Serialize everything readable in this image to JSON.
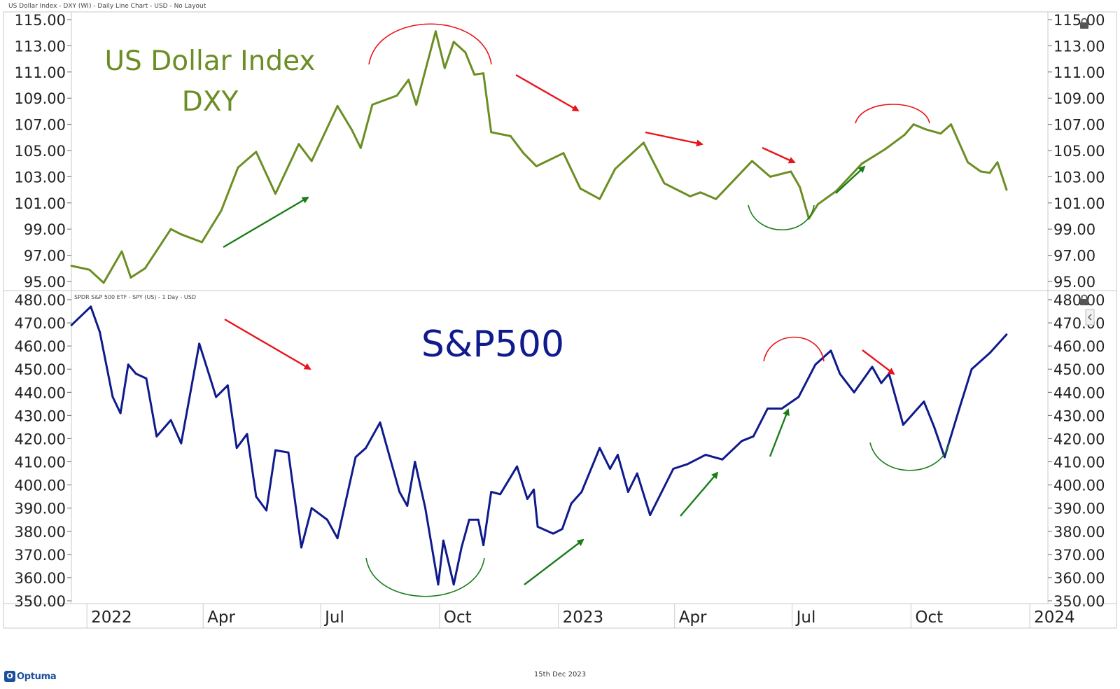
{
  "header": {
    "top_panel_title": "US Dollar Index - DXY (WI) - Daily Line Chart - USD - No Layout",
    "bottom_panel_title": "SPDR S&P 500 ETF - SPY (US) - 1 Day - USD"
  },
  "footer": {
    "date": "15th Dec 2023",
    "brand": "Optuma"
  },
  "colors": {
    "dxy": "#6b8e23",
    "spx": "#0f1a8c",
    "annotation_red": "#e8141b",
    "annotation_green": "#1a7d1a"
  },
  "chart_data": [
    {
      "type": "line",
      "title": "US Dollar Index\nDXY",
      "title_lines": [
        "US Dollar Index",
        "DXY"
      ],
      "ylim": [
        95,
        115
      ],
      "ytick_labels": [
        "95.00",
        "97.00",
        "99.00",
        "101.00",
        "103.00",
        "105.00",
        "107.00",
        "109.00",
        "111.00",
        "113.00",
        "115.00"
      ],
      "ytick_values": [
        95,
        97,
        99,
        101,
        103,
        105,
        107,
        109,
        111,
        113,
        115
      ],
      "axis_side": "both",
      "series": [
        {
          "x": [
            "2021-12-20",
            "2022-01-03",
            "2022-01-14",
            "2022-01-28",
            "2022-02-04",
            "2022-02-15",
            "2022-03-07",
            "2022-03-15",
            "2022-03-31",
            "2022-04-15",
            "2022-04-28",
            "2022-05-12",
            "2022-05-27",
            "2022-06-14",
            "2022-06-24",
            "2022-07-14",
            "2022-07-25",
            "2022-08-01",
            "2022-08-10",
            "2022-08-29",
            "2022-09-07",
            "2022-09-13",
            "2022-09-28",
            "2022-10-05",
            "2022-10-12",
            "2022-10-21",
            "2022-10-28",
            "2022-11-04",
            "2022-11-10",
            "2022-11-25",
            "2022-12-05",
            "2022-12-15",
            "2023-01-05",
            "2023-01-18",
            "2023-02-02",
            "2023-02-14",
            "2023-03-08",
            "2023-03-24",
            "2023-04-13",
            "2023-04-21",
            "2023-05-03",
            "2023-05-31",
            "2023-06-14",
            "2023-06-30",
            "2023-07-07",
            "2023-07-14",
            "2023-07-21",
            "2023-08-04",
            "2023-08-24",
            "2023-09-11",
            "2023-09-26",
            "2023-10-03",
            "2023-10-13",
            "2023-10-24",
            "2023-11-01",
            "2023-11-14",
            "2023-11-24",
            "2023-12-01",
            "2023-12-07",
            "2023-12-14"
          ],
          "values": [
            96.2,
            95.9,
            94.9,
            97.3,
            95.3,
            96.0,
            99.0,
            98.6,
            98.0,
            100.4,
            103.7,
            104.9,
            101.7,
            105.5,
            104.2,
            108.4,
            106.6,
            105.2,
            108.5,
            109.2,
            110.4,
            108.5,
            114.1,
            111.3,
            113.3,
            112.5,
            110.8,
            110.9,
            106.4,
            106.1,
            104.8,
            103.8,
            104.8,
            102.1,
            101.3,
            103.6,
            105.6,
            102.5,
            101.5,
            101.8,
            101.3,
            104.2,
            103.0,
            103.4,
            102.2,
            99.8,
            100.9,
            101.9,
            104.0,
            105.1,
            106.2,
            107.0,
            106.6,
            106.3,
            107.0,
            104.1,
            103.4,
            103.3,
            104.1,
            102.0
          ]
        }
      ]
    },
    {
      "type": "line",
      "title": "S&P500",
      "ylim": [
        350,
        480
      ],
      "ytick_labels": [
        "350.00",
        "360.00",
        "370.00",
        "380.00",
        "390.00",
        "400.00",
        "410.00",
        "420.00",
        "430.00",
        "440.00",
        "450.00",
        "460.00",
        "470.00",
        "480.00"
      ],
      "ytick_values": [
        350,
        360,
        370,
        380,
        390,
        400,
        410,
        420,
        430,
        440,
        450,
        460,
        470,
        480
      ],
      "axis_side": "both",
      "series": [
        {
          "x": [
            "2021-12-20",
            "2022-01-04",
            "2022-01-11",
            "2022-01-21",
            "2022-01-27",
            "2022-02-02",
            "2022-02-08",
            "2022-02-16",
            "2022-02-24",
            "2022-03-07",
            "2022-03-15",
            "2022-03-29",
            "2022-04-06",
            "2022-04-11",
            "2022-04-20",
            "2022-04-27",
            "2022-05-05",
            "2022-05-12",
            "2022-05-20",
            "2022-05-27",
            "2022-06-06",
            "2022-06-16",
            "2022-06-24",
            "2022-07-06",
            "2022-07-14",
            "2022-07-28",
            "2022-08-05",
            "2022-08-16",
            "2022-08-23",
            "2022-08-31",
            "2022-09-06",
            "2022-09-12",
            "2022-09-20",
            "2022-09-30",
            "2022-10-04",
            "2022-10-12",
            "2022-10-18",
            "2022-10-24",
            "2022-10-31",
            "2022-11-04",
            "2022-11-10",
            "2022-11-17",
            "2022-11-30",
            "2022-12-08",
            "2022-12-13",
            "2022-12-16",
            "2022-12-28",
            "2023-01-04",
            "2023-01-11",
            "2023-01-19",
            "2023-02-02",
            "2023-02-10",
            "2023-02-16",
            "2023-02-24",
            "2023-03-03",
            "2023-03-13",
            "2023-03-22",
            "2023-03-31",
            "2023-04-11",
            "2023-04-25",
            "2023-05-08",
            "2023-05-23",
            "2023-06-01",
            "2023-06-12",
            "2023-06-23",
            "2023-07-06",
            "2023-07-19",
            "2023-07-31",
            "2023-08-07",
            "2023-08-18",
            "2023-09-01",
            "2023-09-08",
            "2023-09-14",
            "2023-09-25",
            "2023-10-11",
            "2023-10-19",
            "2023-10-27",
            "2023-11-08",
            "2023-11-17",
            "2023-12-01",
            "2023-12-14"
          ],
          "values": [
            469,
            477,
            466,
            438,
            431,
            452,
            448,
            446,
            421,
            428,
            418,
            461,
            447,
            438,
            443,
            416,
            422,
            395,
            389,
            415,
            414,
            373,
            390,
            385,
            377,
            412,
            416,
            427,
            413,
            397,
            391,
            410,
            390,
            357,
            376,
            357,
            373,
            385,
            385,
            374,
            397,
            396,
            408,
            394,
            398,
            382,
            379,
            381,
            392,
            397,
            416,
            407,
            413,
            397,
            405,
            387,
            397,
            407,
            409,
            413,
            411,
            419,
            421,
            433,
            433,
            438,
            452,
            458,
            448,
            440,
            451,
            444,
            448,
            426,
            436,
            425,
            412,
            434,
            450,
            457,
            465
          ]
        }
      ]
    }
  ],
  "x_axis": {
    "labels": [
      "2022",
      "Apr",
      "Jul",
      "Oct",
      "2023",
      "Apr",
      "Jul",
      "Oct",
      "2024"
    ],
    "dates": [
      "2022-01-01",
      "2022-04-01",
      "2022-07-01",
      "2022-10-01",
      "2023-01-01",
      "2023-04-01",
      "2023-07-01",
      "2023-10-01",
      "2024-01-01"
    ]
  }
}
